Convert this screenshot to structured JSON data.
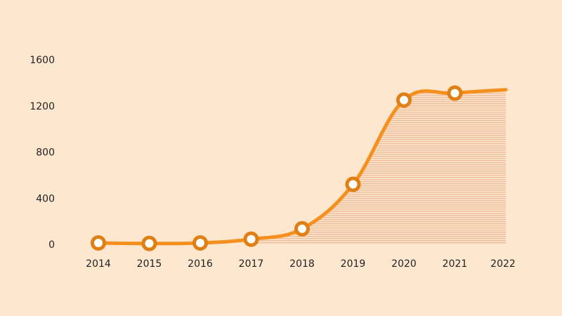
{
  "chart_data": {
    "type": "area",
    "categories": [
      "2014",
      "2015",
      "2016",
      "2017",
      "2018",
      "2019",
      "2020",
      "2021",
      "2022"
    ],
    "values": [
      12,
      8,
      12,
      45,
      135,
      520,
      1250,
      1310,
      1340
    ],
    "marker_years": [
      "2014",
      "2015",
      "2016",
      "2017",
      "2018",
      "2019",
      "2020",
      "2021"
    ],
    "ylim": [
      0,
      1600
    ],
    "yticks": [
      0,
      400,
      800,
      1200,
      1600
    ],
    "title": "",
    "xlabel": "",
    "ylabel": "",
    "grid": false,
    "legend": "none"
  },
  "colors": {
    "background": "#fde7cf",
    "line": "#f5901e",
    "marker_ring": "#e07f14",
    "marker_fill": "#ffffff",
    "area_stripe": "#eebb98",
    "text": "#222222"
  }
}
